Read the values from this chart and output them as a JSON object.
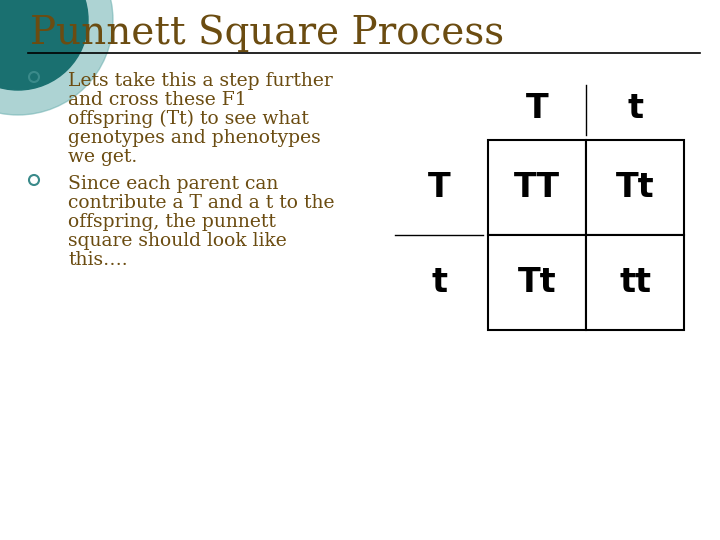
{
  "title": "Punnett Square Process",
  "title_color": "#6B4C11",
  "title_fontsize": 28,
  "background_color": "#FFFFFF",
  "text_color": "#6B4C11",
  "text_fontsize": 13.5,
  "bullet_color": "#3A8A8A",
  "punnett_text_color": "#000000",
  "header_fontsize": 24,
  "cell_fontsize": 24,
  "teal_dark": "#1A7070",
  "teal_light": "#6AAFAF",
  "line_color": "#000000",
  "separator_color": "#000000",
  "bullet1_lines": [
    "Lets take this a step further",
    "and cross these F1",
    "offspring (Tt) to see what",
    "genotypes and phenotypes",
    "we get."
  ],
  "bullet2_lines": [
    "Since each parent can",
    "contribute a T and a t to the",
    "offspring, the punnett",
    "square should look like",
    "this…."
  ],
  "cell_labels": [
    [
      "TT",
      "Tt"
    ],
    [
      "Tt",
      "tt"
    ]
  ],
  "col_headers": [
    "T",
    "t"
  ],
  "row_headers": [
    "T",
    "t"
  ]
}
